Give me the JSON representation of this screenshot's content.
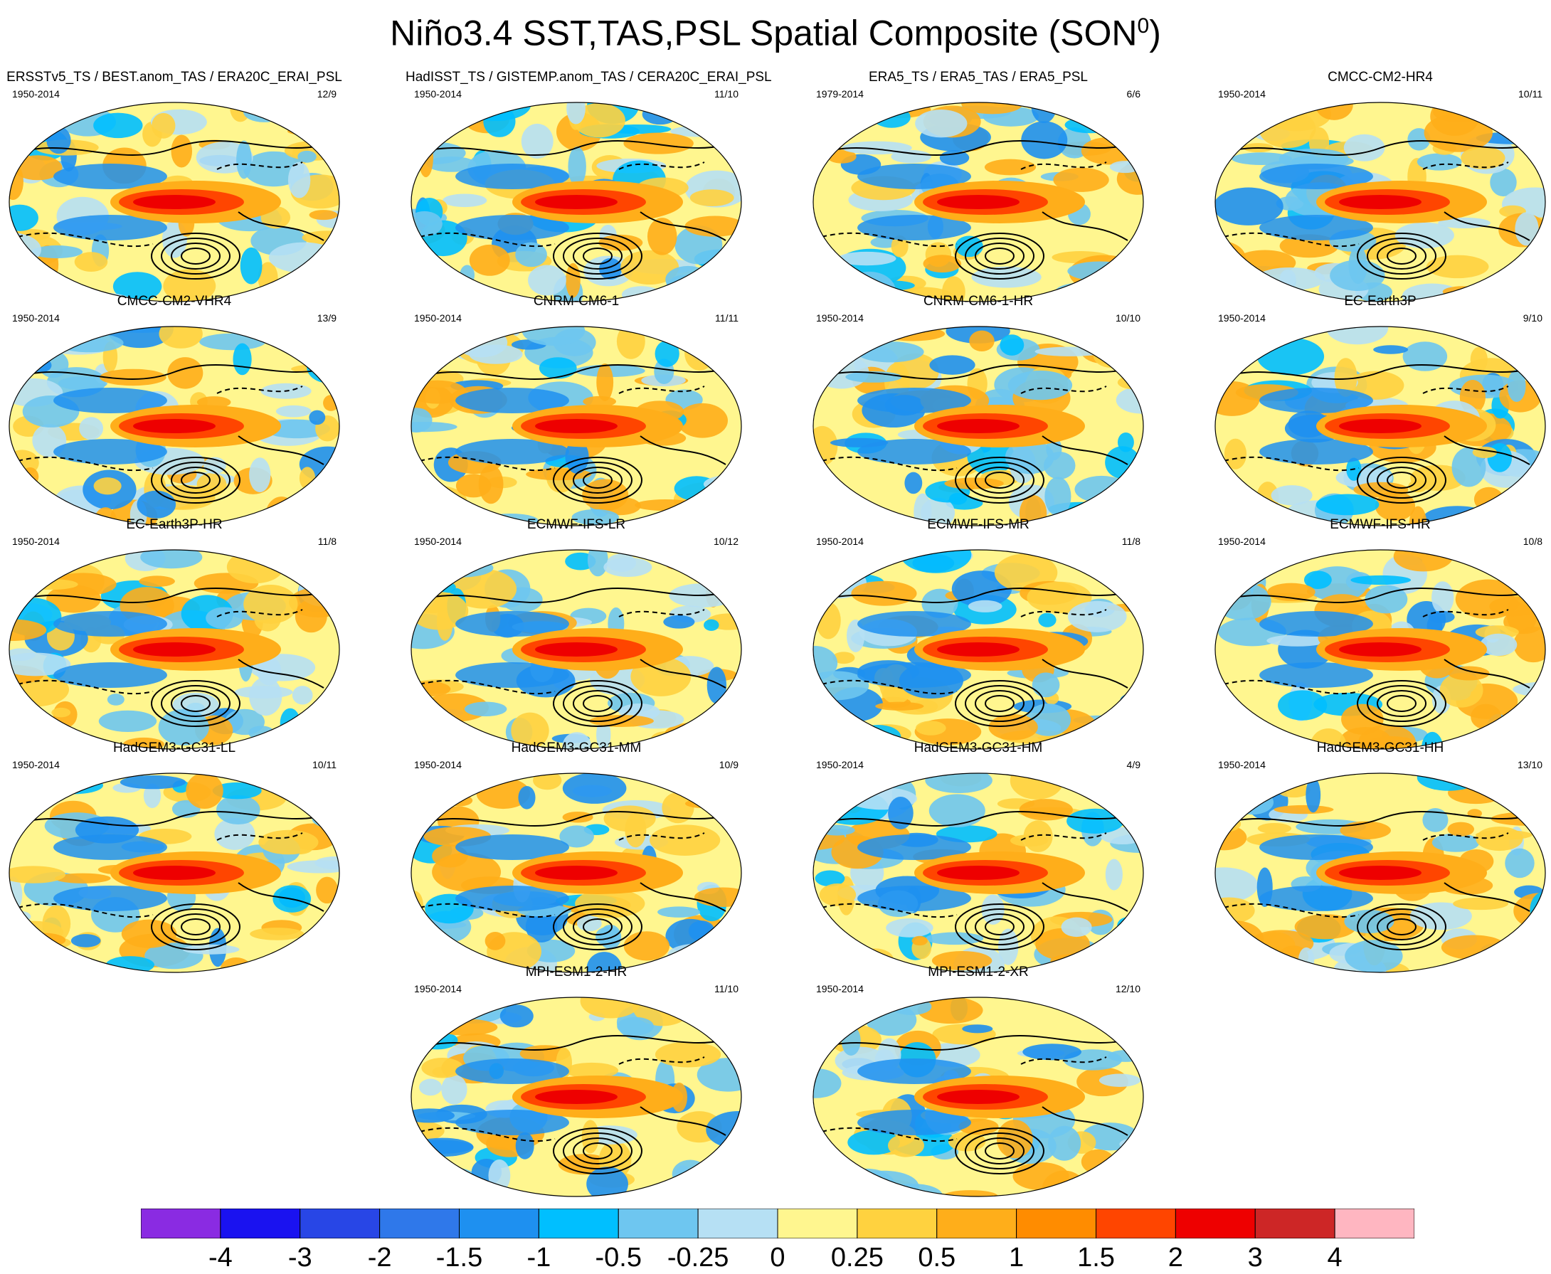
{
  "title": {
    "text": "Niño3.4 SST,TAS,PSL Spatial Composite (SON",
    "superscript": "0",
    "close": ")"
  },
  "panels": [
    {
      "title": "ERSSTv5_TS / BEST.anom_TAS / ERA20C_ERAI_PSL",
      "period": "1950-2014",
      "ratio": "12/9"
    },
    {
      "title": "HadISST_TS / GISTEMP.anom_TAS / CERA20C_ERAI_PSL",
      "period": "1950-2014",
      "ratio": "11/10"
    },
    {
      "title": "ERA5_TS / ERA5_TAS / ERA5_PSL",
      "period": "1979-2014",
      "ratio": "6/6"
    },
    {
      "title": "CMCC-CM2-HR4",
      "period": "1950-2014",
      "ratio": "10/11"
    },
    {
      "title": "CMCC-CM2-VHR4",
      "period": "1950-2014",
      "ratio": "13/9"
    },
    {
      "title": "CNRM-CM6-1",
      "period": "1950-2014",
      "ratio": "11/11"
    },
    {
      "title": "CNRM-CM6-1-HR",
      "period": "1950-2014",
      "ratio": "10/10"
    },
    {
      "title": "EC-Earth3P",
      "period": "1950-2014",
      "ratio": "9/10"
    },
    {
      "title": "EC-Earth3P-HR",
      "period": "1950-2014",
      "ratio": "11/8"
    },
    {
      "title": "ECMWF-IFS-LR",
      "period": "1950-2014",
      "ratio": "10/12"
    },
    {
      "title": "ECMWF-IFS-MR",
      "period": "1950-2014",
      "ratio": "11/8"
    },
    {
      "title": "ECMWF-IFS-HR",
      "period": "1950-2014",
      "ratio": "10/8"
    },
    {
      "title": "HadGEM3-GC31-LL",
      "period": "1950-2014",
      "ratio": "10/11"
    },
    {
      "title": "HadGEM3-GC31-MM",
      "period": "1950-2014",
      "ratio": "10/9"
    },
    {
      "title": "HadGEM3-GC31-HM",
      "period": "1950-2014",
      "ratio": "4/9"
    },
    {
      "title": "HadGEM3-GC31-HH",
      "period": "1950-2014",
      "ratio": "13/10"
    },
    {
      "title": "MPI-ESM1-2-HR",
      "period": "1950-2014",
      "ratio": "11/10"
    },
    {
      "title": "MPI-ESM1-2-XR",
      "period": "1950-2014",
      "ratio": "12/10"
    }
  ],
  "colorbar": {
    "colors": [
      "#8a2be2",
      "#1a12f0",
      "#2846e6",
      "#2f78ea",
      "#1e90f0",
      "#00bfff",
      "#6ec6f0",
      "#b6e0f4",
      "#fff68f",
      "#ffd23f",
      "#ffae1a",
      "#ff8c00",
      "#ff4500",
      "#ee0000",
      "#cd2626",
      "#ffb6c1"
    ],
    "labels": [
      "-4",
      "-3",
      "-2",
      "-1.5",
      "-1",
      "-0.5",
      "-0.25",
      "0",
      "0.25",
      "0.5",
      "1",
      "1.5",
      "2",
      "3",
      "4"
    ]
  }
}
